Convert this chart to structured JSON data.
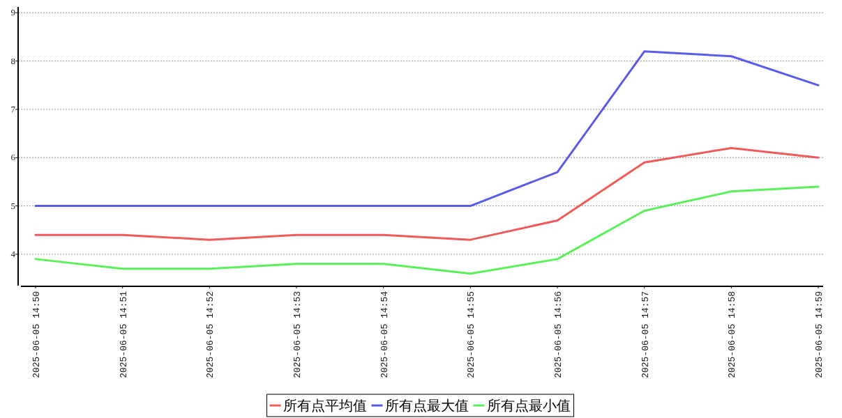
{
  "chart_data": {
    "type": "line",
    "categories": [
      "2025-06-05 14:50",
      "2025-06-05 14:51",
      "2025-06-05 14:52",
      "2025-06-05 14:53",
      "2025-06-05 14:54",
      "2025-06-05 14:55",
      "2025-06-05 14:56",
      "2025-06-05 14:57",
      "2025-06-05 14:58",
      "2025-06-05 14:59"
    ],
    "series": [
      {
        "name": "所有点平均值",
        "color": "#f05a5a",
        "values": [
          4.4,
          4.4,
          4.3,
          4.4,
          4.4,
          4.3,
          4.7,
          5.9,
          6.2,
          6.0
        ]
      },
      {
        "name": "所有点最大值",
        "color": "#5a5aeb",
        "values": [
          5,
          5,
          5,
          5,
          5,
          5,
          5.7,
          8.2,
          8.1,
          7.5
        ]
      },
      {
        "name": "所有点最小值",
        "color": "#5af05a",
        "values": [
          3.9,
          3.7,
          3.7,
          3.8,
          3.8,
          3.6,
          3.9,
          4.9,
          5.3,
          5.4
        ]
      }
    ],
    "ylim": [
      3.35,
      9.12
    ],
    "yticks": [
      4,
      5,
      6,
      7,
      8,
      9
    ],
    "grid": "y",
    "legend": "bottom",
    "marker": "none",
    "line_style": "solid"
  }
}
